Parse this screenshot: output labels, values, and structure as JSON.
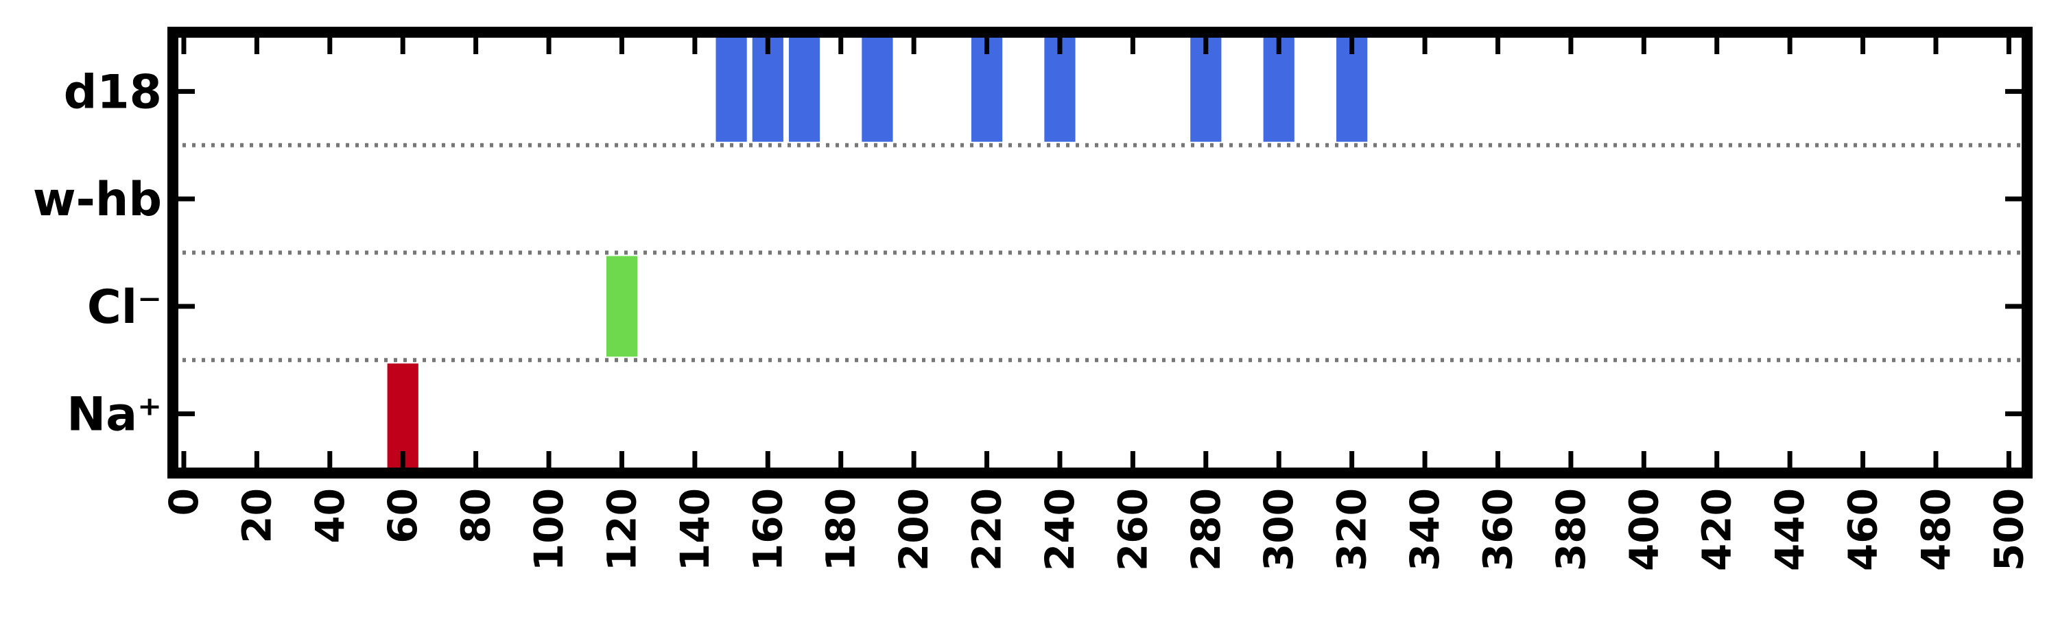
{
  "chart_data": {
    "type": "bar",
    "orientation": "horizontal-timeline",
    "categories": [
      "d18",
      "w-hb",
      "Cl⁻",
      "Na⁺"
    ],
    "category_colors": {
      "d18": "#4169e1",
      "w-hb": "#4169e1",
      "Cl⁻": "#6fd94e",
      "Na⁺": "#c0001a"
    },
    "events": [
      {
        "category": "d18",
        "x": 150
      },
      {
        "category": "d18",
        "x": 160
      },
      {
        "category": "d18",
        "x": 170
      },
      {
        "category": "d18",
        "x": 190
      },
      {
        "category": "d18",
        "x": 220
      },
      {
        "category": "d18",
        "x": 240
      },
      {
        "category": "d18",
        "x": 280
      },
      {
        "category": "d18",
        "x": 300
      },
      {
        "category": "d18",
        "x": 320
      },
      {
        "category": "Cl⁻",
        "x": 120
      },
      {
        "category": "Na⁺",
        "x": 60
      }
    ],
    "bar_width": 8.5,
    "xlim": [
      -3,
      505
    ],
    "xticks": [
      0,
      20,
      40,
      60,
      80,
      100,
      120,
      140,
      160,
      180,
      200,
      220,
      240,
      260,
      280,
      300,
      320,
      340,
      360,
      380,
      400,
      420,
      440,
      460,
      480,
      500
    ],
    "separator_style": "dotted",
    "separator_color": "#777777",
    "title": "",
    "xlabel": "",
    "ylabel": "",
    "grid": false,
    "legend": false
  }
}
